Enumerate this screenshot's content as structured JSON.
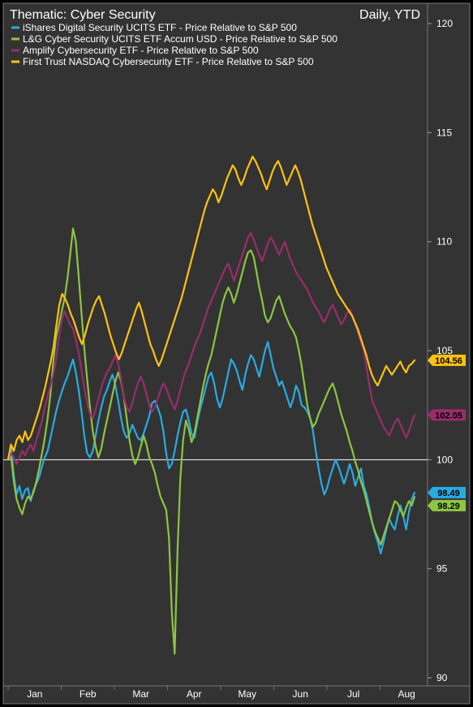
{
  "chart_data": {
    "type": "line",
    "title": "Thematic: Cyber Security",
    "period": "Daily, YTD",
    "ylim": [
      90,
      120
    ],
    "yticks": [
      90,
      95,
      100,
      105,
      110,
      115,
      120
    ],
    "reference_line": 100,
    "months": [
      "Jan",
      "Feb",
      "Mar",
      "Apr",
      "May",
      "Jun",
      "Jul",
      "Aug"
    ],
    "grid": false,
    "legend_position": "top-left",
    "series": [
      {
        "name": "iShares Digital Security UCITS ETF - Price Relative to S&P 500",
        "color": "#29abe2",
        "last_value_label": "98.49",
        "values": [
          100.0,
          100.6,
          99.3,
          98.4,
          98.8,
          98.2,
          98.6,
          98.7,
          98.1,
          98.6,
          98.9,
          99.2,
          99.7,
          100.1,
          100.4,
          101.0,
          101.6,
          102.2,
          102.7,
          103.1,
          103.5,
          103.8,
          104.2,
          104.6,
          104.0,
          103.2,
          102.2,
          101.1,
          100.3,
          100.1,
          100.4,
          101.1,
          101.8,
          102.4,
          102.9,
          103.2,
          103.6,
          103.9,
          103.4,
          102.7,
          101.9,
          101.3,
          101.0,
          101.2,
          101.6,
          101.3,
          101.0,
          100.9,
          101.2,
          101.6,
          102.0,
          102.6,
          102.7,
          102.4,
          102.0,
          101.3,
          100.3,
          99.6,
          99.8,
          100.4,
          101.1,
          101.7,
          102.2,
          102.3,
          101.8,
          101.2,
          101.0,
          101.7,
          102.3,
          102.8,
          103.3,
          103.8,
          104.0,
          103.5,
          102.8,
          102.4,
          102.8,
          103.4,
          104.0,
          104.6,
          104.4,
          104.1,
          103.6,
          103.2,
          103.9,
          104.4,
          104.8,
          104.6,
          104.2,
          103.8,
          104.4,
          105.0,
          105.4,
          104.8,
          104.2,
          103.8,
          103.4,
          103.6,
          103.2,
          102.8,
          102.4,
          102.8,
          103.4,
          103.1,
          102.5,
          102.4,
          102.2,
          101.9,
          101.3,
          100.4,
          99.6,
          98.9,
          98.4,
          98.7,
          99.2,
          99.6,
          100.0,
          99.7,
          99.3,
          98.9,
          99.3,
          99.8,
          99.4,
          98.8,
          99.2,
          99.6,
          98.8,
          98.4,
          97.8,
          97.1,
          96.6,
          96.2,
          95.7,
          96.2,
          96.8,
          97.3,
          97.0,
          96.8,
          97.4,
          97.9,
          97.4,
          96.8,
          97.6,
          98.2,
          98.49
        ]
      },
      {
        "name": "L&G Cyber Security UCITS ETF Accum USD - Price Relative to S&P 500",
        "color": "#8dc63f",
        "last_value_label": "98.29",
        "values": [
          100.0,
          100.2,
          99.0,
          98.2,
          97.8,
          97.5,
          98.0,
          98.3,
          98.2,
          98.5,
          99.0,
          99.6,
          100.3,
          101.0,
          101.9,
          103.0,
          104.5,
          105.6,
          106.2,
          106.8,
          107.4,
          108.3,
          109.4,
          110.6,
          110.0,
          108.4,
          106.7,
          105.1,
          103.7,
          102.4,
          101.3,
          100.6,
          100.1,
          100.5,
          101.2,
          101.8,
          102.4,
          103.0,
          103.6,
          104.0,
          103.6,
          102.9,
          101.9,
          100.9,
          100.2,
          99.8,
          100.1,
          100.6,
          101.1,
          100.7,
          100.1,
          99.8,
          99.4,
          98.8,
          98.3,
          98.0,
          97.7,
          96.4,
          93.0,
          91.1,
          95.8,
          99.1,
          100.9,
          101.8,
          101.4,
          100.8,
          101.2,
          101.9,
          102.6,
          103.3,
          103.9,
          104.4,
          104.8,
          105.4,
          106.0,
          106.6,
          107.2,
          107.6,
          107.9,
          107.6,
          107.2,
          107.6,
          108.1,
          108.6,
          109.1,
          109.5,
          109.6,
          109.3,
          108.6,
          107.9,
          107.3,
          106.6,
          106.3,
          106.5,
          106.9,
          107.3,
          107.5,
          107.1,
          106.7,
          106.4,
          106.1,
          105.9,
          105.6,
          105.0,
          104.3,
          103.4,
          102.5,
          101.9,
          101.5,
          101.7,
          102.1,
          102.4,
          102.7,
          103.0,
          103.3,
          103.5,
          103.1,
          102.6,
          102.1,
          101.7,
          101.3,
          100.8,
          100.4,
          99.9,
          99.5,
          99.0,
          98.6,
          98.1,
          97.6,
          97.1,
          96.7,
          96.4,
          96.1,
          96.5,
          96.9,
          97.3,
          97.7,
          98.1,
          98.0,
          97.7,
          97.4,
          97.8,
          98.1,
          97.9,
          98.29
        ]
      },
      {
        "name": "Amplify Cybersecurity ETF - Price Relative to S&P 500",
        "color": "#9b2c6b",
        "last_value_label": "102.05",
        "values": [
          100.0,
          100.3,
          100.1,
          99.8,
          100.1,
          100.4,
          100.2,
          100.5,
          100.7,
          100.4,
          100.9,
          101.3,
          101.8,
          102.4,
          102.9,
          103.4,
          103.9,
          104.6,
          105.6,
          106.4,
          106.8,
          106.5,
          106.2,
          106.0,
          105.5,
          104.9,
          104.1,
          103.3,
          102.6,
          102.1,
          101.9,
          102.3,
          102.8,
          103.3,
          103.7,
          104.0,
          104.2,
          104.5,
          104.8,
          104.4,
          103.7,
          102.9,
          102.4,
          102.2,
          102.6,
          103.1,
          103.5,
          103.8,
          103.5,
          103.0,
          102.5,
          102.2,
          102.4,
          102.8,
          103.2,
          103.5,
          103.3,
          102.9,
          102.6,
          102.3,
          102.7,
          103.2,
          103.7,
          104.1,
          104.4,
          104.8,
          105.2,
          105.5,
          105.8,
          106.2,
          106.6,
          107.0,
          107.3,
          107.6,
          107.9,
          108.2,
          108.5,
          108.8,
          109.0,
          108.6,
          108.2,
          108.6,
          109.0,
          109.4,
          109.8,
          110.2,
          110.4,
          110.1,
          109.7,
          109.4,
          109.1,
          109.5,
          109.9,
          110.2,
          110.0,
          109.7,
          109.4,
          109.7,
          110.0,
          109.6,
          109.2,
          108.9,
          108.6,
          108.4,
          108.2,
          108.0,
          107.8,
          107.5,
          107.2,
          107.0,
          106.8,
          106.5,
          106.3,
          106.6,
          106.9,
          107.1,
          106.8,
          106.5,
          106.2,
          106.4,
          106.7,
          106.9,
          106.6,
          106.2,
          105.8,
          105.4,
          105.0,
          104.2,
          103.4,
          102.7,
          102.4,
          102.1,
          101.8,
          101.5,
          101.3,
          101.1,
          101.4,
          101.7,
          101.9,
          101.6,
          101.3,
          101.0,
          101.3,
          101.7,
          102.05
        ]
      },
      {
        "name": "First Trust NASDAQ Cybersecurity ETF - Price Relative to S&P 500",
        "color": "#ffc20e",
        "last_value_label": "104.56",
        "values": [
          100.0,
          100.7,
          100.4,
          100.9,
          101.1,
          100.8,
          101.3,
          100.9,
          101.1,
          101.5,
          101.9,
          102.3,
          102.8,
          103.3,
          103.9,
          104.5,
          105.2,
          106.2,
          107.1,
          107.6,
          107.4,
          107.1,
          106.7,
          106.4,
          106.0,
          105.6,
          105.3,
          105.7,
          106.2,
          106.6,
          107.0,
          107.3,
          107.5,
          107.1,
          106.7,
          106.2,
          105.7,
          105.3,
          104.9,
          104.6,
          104.9,
          105.3,
          105.7,
          106.1,
          106.5,
          106.9,
          107.2,
          106.8,
          106.3,
          105.8,
          105.3,
          105.0,
          104.6,
          104.3,
          104.6,
          105.0,
          105.4,
          105.8,
          106.2,
          106.6,
          107.0,
          107.4,
          107.9,
          108.4,
          108.9,
          109.4,
          109.9,
          110.4,
          110.9,
          111.4,
          111.8,
          112.1,
          112.4,
          112.2,
          111.8,
          112.1,
          112.5,
          112.9,
          113.2,
          113.5,
          113.3,
          112.9,
          112.6,
          112.9,
          113.3,
          113.6,
          113.9,
          113.7,
          113.4,
          113.1,
          112.7,
          112.4,
          112.8,
          113.2,
          113.5,
          113.7,
          113.4,
          113.0,
          112.6,
          112.9,
          113.2,
          113.5,
          113.2,
          112.8,
          112.3,
          111.8,
          111.3,
          110.8,
          110.4,
          110.0,
          109.6,
          109.2,
          108.8,
          108.5,
          108.2,
          107.9,
          107.6,
          107.4,
          107.2,
          107.0,
          106.8,
          106.6,
          106.3,
          106.0,
          105.6,
          105.2,
          104.8,
          104.3,
          103.9,
          103.6,
          103.4,
          103.7,
          104.0,
          104.3,
          104.1,
          103.9,
          104.1,
          104.3,
          104.5,
          104.2,
          104.0,
          104.3,
          104.4,
          104.56
        ]
      }
    ]
  }
}
